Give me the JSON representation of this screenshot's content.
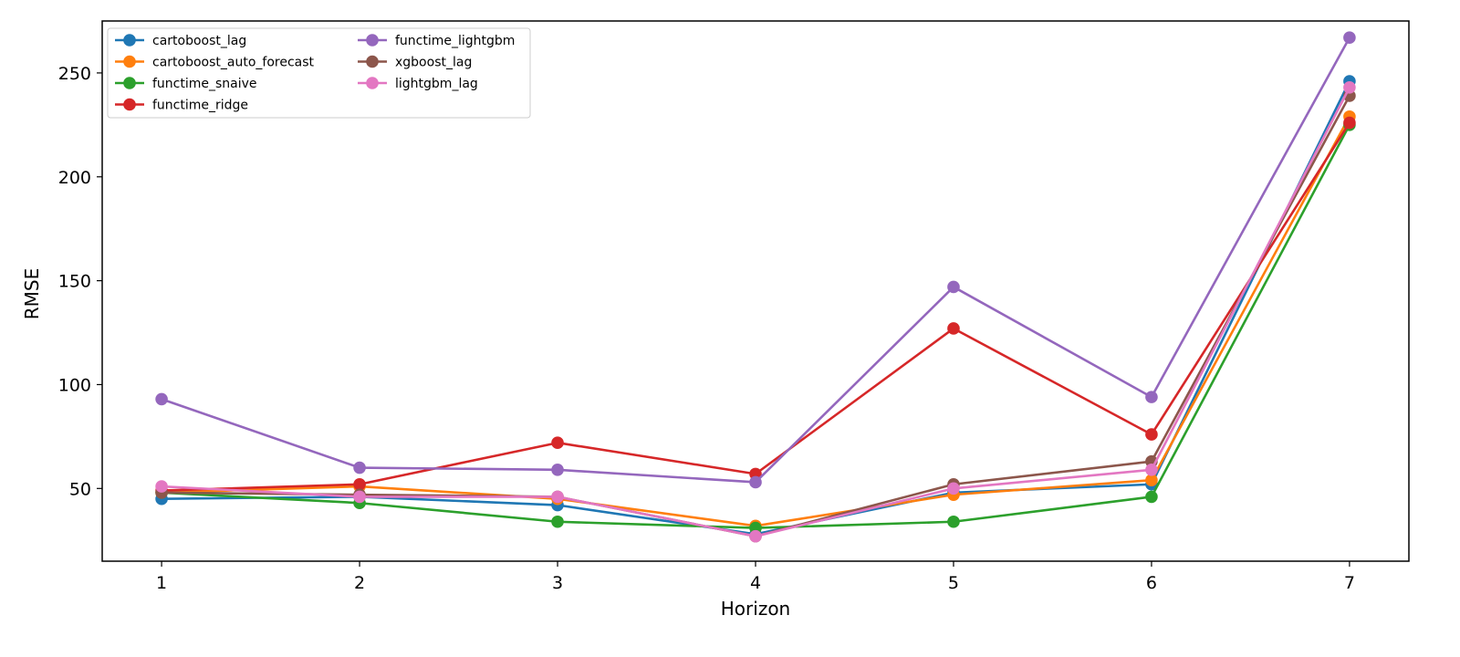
{
  "chart_data": {
    "type": "line",
    "title": "",
    "xlabel": "Horizon",
    "ylabel": "RMSE",
    "x": [
      1,
      2,
      3,
      4,
      5,
      6,
      7
    ],
    "xlim": [
      0.7,
      7.3
    ],
    "ylim": [
      15,
      275
    ],
    "xticks": [
      1,
      2,
      3,
      4,
      5,
      6,
      7
    ],
    "yticks": [
      50,
      100,
      150,
      200,
      250
    ],
    "grid": false,
    "legend_position": "top-left",
    "legend_columns": 2,
    "series": [
      {
        "name": "cartoboost_lag",
        "color": "#1f77b4",
        "values": [
          45,
          46,
          42,
          28,
          48,
          52,
          246
        ]
      },
      {
        "name": "cartoboost_auto_forecast",
        "color": "#ff7f0e",
        "values": [
          48,
          51,
          45,
          32,
          47,
          54,
          229
        ]
      },
      {
        "name": "functime_snaive",
        "color": "#2ca02c",
        "values": [
          48,
          43,
          34,
          31,
          34,
          46,
          225
        ]
      },
      {
        "name": "functime_ridge",
        "color": "#d62728",
        "values": [
          49,
          52,
          72,
          57,
          127,
          76,
          226
        ]
      },
      {
        "name": "functime_lightgbm",
        "color": "#9467bd",
        "values": [
          93,
          60,
          59,
          53,
          147,
          94,
          267
        ]
      },
      {
        "name": "xgboost_lag",
        "color": "#8c564b",
        "values": [
          48,
          47,
          46,
          27,
          52,
          63,
          239
        ]
      },
      {
        "name": "lightgbm_lag",
        "color": "#e377c2",
        "values": [
          51,
          46,
          46,
          27,
          50,
          59,
          243
        ]
      }
    ]
  }
}
